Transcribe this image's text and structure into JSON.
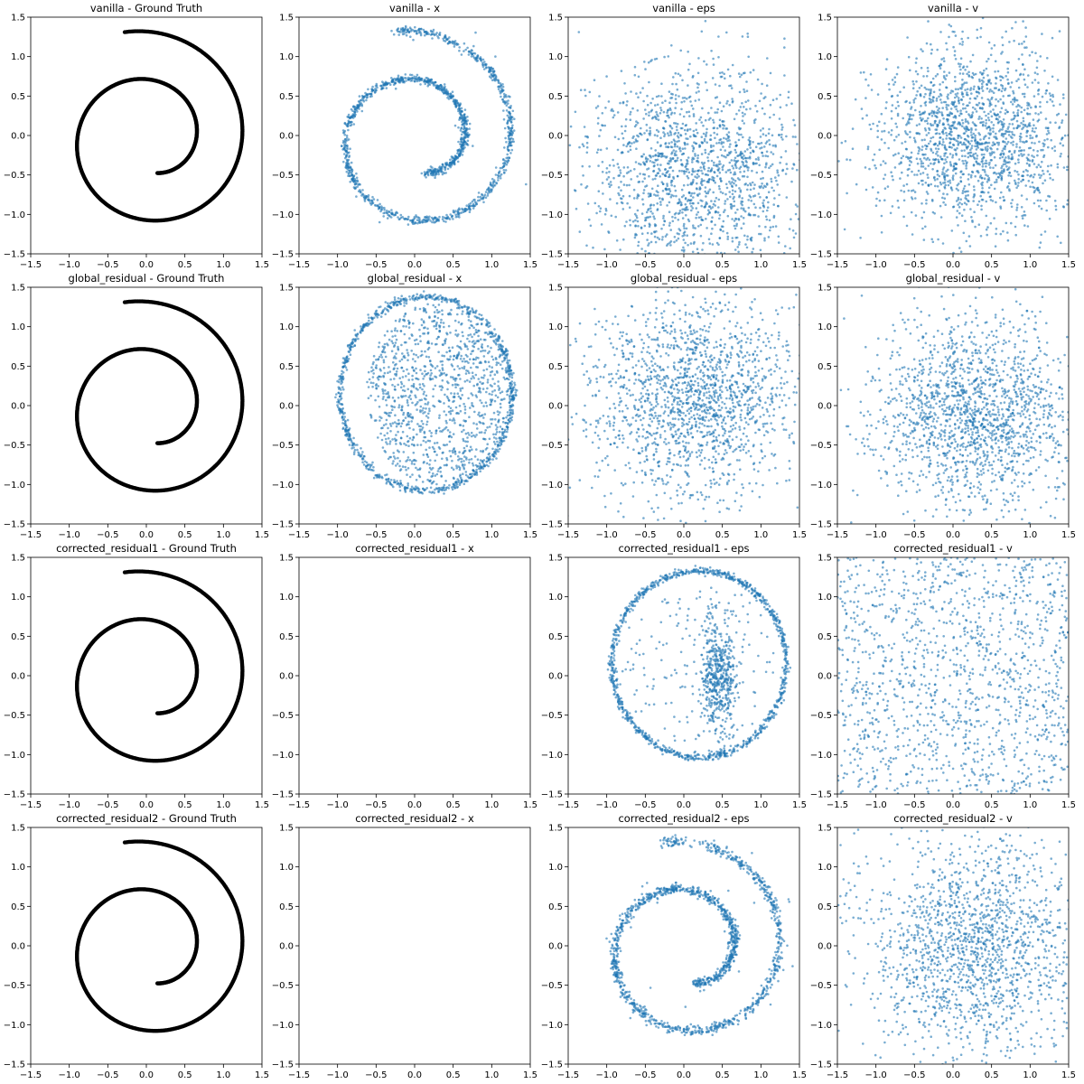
{
  "figure": {
    "grid_rows": 4,
    "grid_cols": 4
  },
  "colors": {
    "ground_truth": "#000000",
    "samples": "#1f77b4",
    "axes": "#000000",
    "background": "#ffffff"
  },
  "axes_defaults": {
    "xlim": [
      -1.5,
      1.5
    ],
    "ylim": [
      -1.5,
      1.5
    ],
    "xticks": [
      -1.5,
      -1.0,
      -0.5,
      0.0,
      0.5,
      1.0,
      1.5
    ],
    "yticks": [
      -1.5,
      -1.0,
      -0.5,
      0.0,
      0.5,
      1.0,
      1.5
    ],
    "xtick_labels": [
      "−1.5",
      "−1.0",
      "−0.5",
      "0.0",
      "0.5",
      "1.0",
      "1.5"
    ],
    "ytick_labels": [
      "−1.5",
      "−1.0",
      "−0.5",
      "0.0",
      "0.5",
      "1.0",
      "1.5"
    ],
    "grid": false
  },
  "chart_data": [
    {
      "type": "scatter",
      "title": "vanilla - Ground Truth",
      "color": "#000000",
      "shape": "spiral_clean",
      "xlim": [
        -1.5,
        1.5
      ],
      "ylim": [
        -1.5,
        1.5
      ],
      "series": [
        {
          "shape": "spiral",
          "r_start": 0.47,
          "r_end": 1.41,
          "turns": 1.5,
          "spread": 0.0
        }
      ]
    },
    {
      "type": "scatter",
      "title": "vanilla - x",
      "color": "#1f77b4",
      "shape": "spiral_noisy",
      "xlim": [
        -1.5,
        1.5
      ],
      "ylim": [
        -1.5,
        1.5
      ],
      "series": [
        {
          "shape": "spiral",
          "r_start": 0.47,
          "r_end": 1.41,
          "turns": 1.5,
          "spread": 0.025
        }
      ]
    },
    {
      "type": "scatter",
      "title": "vanilla - eps",
      "color": "#1f77b4",
      "shape": "gaussian_cloud",
      "xlim": [
        -1.5,
        1.5
      ],
      "ylim": [
        -1.5,
        1.5
      ],
      "series": [
        {
          "shape": "gaussian",
          "center": [
            0.2,
            -0.5
          ],
          "std": [
            0.75,
            0.7
          ]
        }
      ]
    },
    {
      "type": "scatter",
      "title": "vanilla - v",
      "color": "#1f77b4",
      "shape": "gaussian_cloud",
      "xlim": [
        -1.5,
        1.5
      ],
      "ylim": [
        -1.5,
        1.5
      ],
      "series": [
        {
          "shape": "gaussian",
          "center": [
            0.3,
            0.0
          ],
          "std": [
            0.65,
            0.6
          ]
        }
      ]
    },
    {
      "type": "scatter",
      "title": "global_residual - Ground Truth",
      "color": "#000000",
      "shape": "spiral_clean",
      "xlim": [
        -1.5,
        1.5
      ],
      "ylim": [
        -1.5,
        1.5
      ],
      "series": [
        {
          "shape": "spiral",
          "r_start": 0.47,
          "r_end": 1.41,
          "turns": 1.5,
          "spread": 0.0
        }
      ]
    },
    {
      "type": "scatter",
      "title": "global_residual - x",
      "color": "#1f77b4",
      "shape": "filled_loop",
      "xlim": [
        -1.5,
        1.5
      ],
      "ylim": [
        -1.5,
        1.5
      ],
      "series": [
        {
          "shape": "filled_loop",
          "center": [
            0.15,
            0.15
          ],
          "radius": 1.15
        }
      ]
    },
    {
      "type": "scatter",
      "title": "global_residual - eps",
      "color": "#1f77b4",
      "shape": "gaussian_cloud",
      "xlim": [
        -1.5,
        1.5
      ],
      "ylim": [
        -1.5,
        1.5
      ],
      "series": [
        {
          "shape": "gaussian",
          "center": [
            0.1,
            0.1
          ],
          "std": [
            0.7,
            0.65
          ]
        }
      ]
    },
    {
      "type": "scatter",
      "title": "global_residual - v",
      "color": "#1f77b4",
      "shape": "gaussian_cloud",
      "xlim": [
        -1.5,
        1.5
      ],
      "ylim": [
        -1.5,
        1.5
      ],
      "series": [
        {
          "shape": "gaussian",
          "center": [
            0.3,
            -0.1
          ],
          "std": [
            0.65,
            0.6
          ]
        }
      ]
    },
    {
      "type": "scatter",
      "title": "corrected_residual1 - Ground Truth",
      "color": "#000000",
      "shape": "spiral_clean",
      "xlim": [
        -1.5,
        1.5
      ],
      "ylim": [
        -1.5,
        1.5
      ],
      "series": [
        {
          "shape": "spiral",
          "r_start": 0.47,
          "r_end": 1.41,
          "turns": 1.5,
          "spread": 0.0
        }
      ]
    },
    {
      "type": "scatter",
      "title": "corrected_residual1 - x",
      "color": "#1f77b4",
      "shape": "empty",
      "xlim": [
        -1.5,
        1.5
      ],
      "ylim": [
        -1.5,
        1.5
      ],
      "series": []
    },
    {
      "type": "scatter",
      "title": "corrected_residual1 - eps",
      "color": "#1f77b4",
      "shape": "loop_blob",
      "xlim": [
        -1.5,
        1.5
      ],
      "ylim": [
        -1.5,
        1.5
      ],
      "series": [
        {
          "shape": "loop_blob",
          "center": [
            0.2,
            0.15
          ],
          "radius": 1.15
        }
      ]
    },
    {
      "type": "scatter",
      "title": "corrected_residual1 - v",
      "color": "#1f77b4",
      "shape": "uniform_cloud",
      "xlim": [
        -1.5,
        1.5
      ],
      "ylim": [
        -1.5,
        1.5
      ],
      "series": [
        {
          "shape": "uniform"
        }
      ]
    },
    {
      "type": "scatter",
      "title": "corrected_residual2 - Ground Truth",
      "color": "#000000",
      "shape": "spiral_clean",
      "xlim": [
        -1.5,
        1.5
      ],
      "ylim": [
        -1.5,
        1.5
      ],
      "series": [
        {
          "shape": "spiral",
          "r_start": 0.47,
          "r_end": 1.41,
          "turns": 1.5,
          "spread": 0.0
        }
      ]
    },
    {
      "type": "scatter",
      "title": "corrected_residual2 - x",
      "color": "#1f77b4",
      "shape": "empty",
      "xlim": [
        -1.5,
        1.5
      ],
      "ylim": [
        -1.5,
        1.5
      ],
      "series": []
    },
    {
      "type": "scatter",
      "title": "corrected_residual2 - eps",
      "color": "#1f77b4",
      "shape": "spiral_noisy",
      "xlim": [
        -1.5,
        1.5
      ],
      "ylim": [
        -1.5,
        1.5
      ],
      "series": [
        {
          "shape": "spiral",
          "r_start": 0.47,
          "r_end": 1.41,
          "turns": 1.5,
          "spread": 0.03
        }
      ]
    },
    {
      "type": "scatter",
      "title": "corrected_residual2 - v",
      "color": "#1f77b4",
      "shape": "polygon_cloud",
      "xlim": [
        -1.5,
        1.5
      ],
      "ylim": [
        -1.5,
        1.5
      ],
      "series": [
        {
          "shape": "gaussian",
          "center": [
            0.3,
            0.0
          ],
          "std": [
            0.75,
            0.7
          ]
        }
      ]
    }
  ]
}
